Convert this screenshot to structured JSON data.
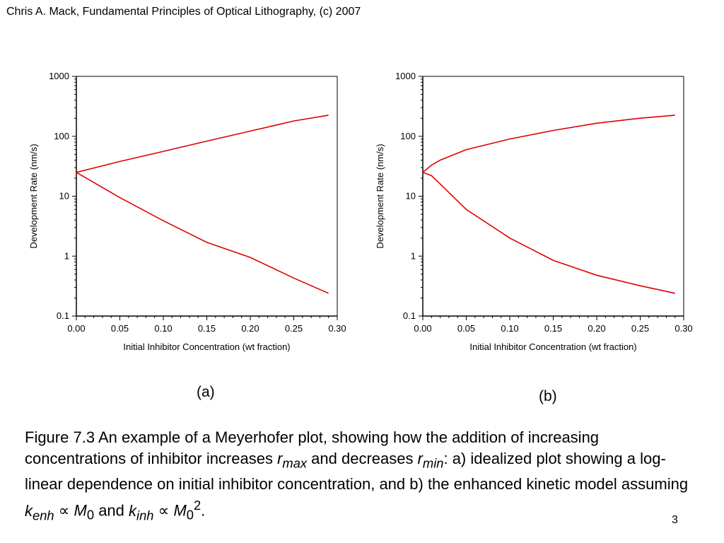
{
  "header": "Chris A. Mack, Fundamental Principles of Optical Lithography, (c) 2007",
  "chart_data": [
    {
      "type": "line",
      "panel": "(a)",
      "xlabel": "Initial Inhibitor Concentration (wt fraction)",
      "ylabel": "Development Rate (nm/s)",
      "xlim": [
        0.0,
        0.3
      ],
      "ylim": [
        0.1,
        1000
      ],
      "yscale": "log",
      "xticks": [
        "0.00",
        "0.05",
        "0.10",
        "0.15",
        "0.20",
        "0.25",
        "0.30"
      ],
      "yticks": [
        "0.1",
        "1",
        "10",
        "100",
        "1000"
      ],
      "grid": false,
      "series": [
        {
          "x": [
            0.0,
            0.05,
            0.1,
            0.15,
            0.2,
            0.25,
            0.29
          ],
          "y": [
            25,
            38,
            56,
            83,
            122,
            180,
            225
          ]
        },
        {
          "x": [
            0.0,
            0.05,
            0.1,
            0.15,
            0.2,
            0.25,
            0.29
          ],
          "y": [
            25,
            9.5,
            3.9,
            1.7,
            0.95,
            0.43,
            0.24
          ]
        }
      ]
    },
    {
      "type": "line",
      "panel": "(b)",
      "xlabel": "Initial Inhibitor Concentration (wt fraction)",
      "ylabel": "Development Rate (nm/s)",
      "xlim": [
        0.0,
        0.3
      ],
      "ylim": [
        0.1,
        1000
      ],
      "yscale": "log",
      "xticks": [
        "0.00",
        "0.05",
        "0.10",
        "0.15",
        "0.20",
        "0.25",
        "0.30"
      ],
      "yticks": [
        "0.1",
        "1",
        "10",
        "100",
        "1000"
      ],
      "grid": false,
      "series": [
        {
          "x": [
            0.0,
            0.01,
            0.02,
            0.05,
            0.1,
            0.15,
            0.2,
            0.25,
            0.29
          ],
          "y": [
            25,
            33,
            40,
            60,
            90,
            125,
            165,
            200,
            225
          ]
        },
        {
          "x": [
            0.0,
            0.01,
            0.02,
            0.05,
            0.1,
            0.15,
            0.2,
            0.25,
            0.29
          ],
          "y": [
            25,
            22,
            16,
            6,
            2,
            0.85,
            0.48,
            0.32,
            0.24
          ]
        }
      ]
    }
  ],
  "colors": {
    "line": "#e00000"
  },
  "panel_labels": [
    "(a)",
    "(b)"
  ],
  "caption": {
    "p1": "Figure 7.3  An example of a Meyerhofer plot, showing how the addition of increasing concentrations of inhibitor increases ",
    "r": "r",
    "max": "max",
    "p2": " and decreases ",
    "min": "min",
    "p3": ":  a) idealized plot showing a log-linear dependence on initial inhibitor concentration, and b) the enhanced kinetic model assuming ",
    "k": "k",
    "enh": "enh",
    "prop": " ∝ ",
    "M": "M",
    "zero": "0",
    "and": " and ",
    "inh": "inh",
    "sq": "2",
    "end": "."
  },
  "page_number": "3"
}
